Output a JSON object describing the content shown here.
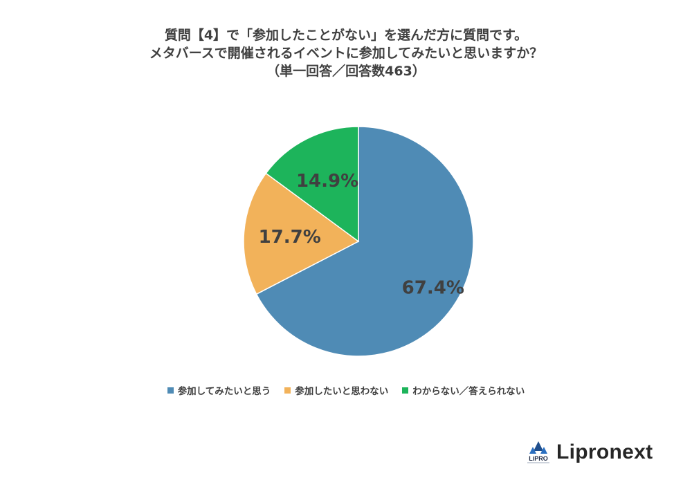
{
  "title": {
    "line1": "質問【4】で「参加したことがない」を選んだ方に質問です。",
    "line2": "メタバースで開催されるイベントに参加してみたいと思いますか？",
    "line3": "（単一回答／回答数463）"
  },
  "chart_data": {
    "type": "pie",
    "title": "質問【4】で「参加したことがない」を選んだ方に質問です。メタバースで開催されるイベントに参加してみたいと思いますか？（単一回答／回答数463）",
    "categories": [
      "参加してみたいと思う",
      "参加したいと思わない",
      "わからない／答えられない"
    ],
    "values": [
      67.4,
      17.7,
      14.9
    ],
    "labels": [
      "67.4%",
      "17.7%",
      "14.9%"
    ],
    "colors": [
      "#4f8bb5",
      "#f2b25a",
      "#1db45b"
    ],
    "start": "12 o'clock",
    "direction": "clockwise",
    "legend_position": "bottom"
  },
  "brand": {
    "name": "Lipronext",
    "mark_text": "LiPRO"
  }
}
